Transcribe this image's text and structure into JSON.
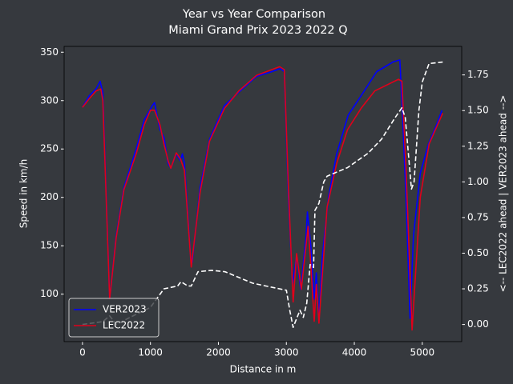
{
  "chart_data": {
    "type": "line",
    "title": "Year vs Year Comparison",
    "subtitle": "Miami Grand Prix 2023 2022 Q",
    "x_label": "Distance in m",
    "y_label": "Speed in km/h",
    "y2_label": "<-- LEC2022 ahead | VER2023 ahead -->",
    "xlim": [
      -270,
      5580
    ],
    "ylim": [
      51,
      356
    ],
    "y2lim": [
      -0.12,
      1.95
    ],
    "xticks": [
      0,
      1000,
      2000,
      3000,
      4000,
      5000
    ],
    "yticks": [
      100,
      150,
      200,
      250,
      300,
      350
    ],
    "y2ticks": [
      {
        "value": 0,
        "label": "0.00"
      },
      {
        "value": 0.25,
        "label": "0.25"
      },
      {
        "value": 0.5,
        "label": "0.50"
      },
      {
        "value": 0.75,
        "label": "0.75"
      },
      {
        "value": 1,
        "label": "1.00"
      },
      {
        "value": 1.25,
        "label": "1.25"
      },
      {
        "value": 1.5,
        "label": "1.50"
      },
      {
        "value": 1.75,
        "label": "1.75"
      }
    ],
    "legend": "lower left",
    "series": [
      {
        "name": "VER2023",
        "color": "#0000ff",
        "x": [
          0,
          100,
          200,
          260,
          300,
          400,
          495,
          610,
          790,
          910,
          1030,
          1060,
          1140,
          1200,
          1260,
          1300,
          1380,
          1440,
          1470,
          1500,
          1590,
          1615,
          1730,
          1870,
          2090,
          2320,
          2560,
          2790,
          2910,
          2970,
          3030,
          3090,
          3150,
          3210,
          3290,
          3310,
          3360,
          3410,
          3440,
          3480,
          3530,
          3620,
          3740,
          3910,
          4100,
          4330,
          4570,
          4670,
          4700,
          4760,
          4820,
          4870,
          4970,
          5090,
          5210,
          5290
        ],
        "values": [
          293,
          305,
          312,
          320,
          308,
          95,
          160,
          210,
          250,
          280,
          295,
          298,
          270,
          262,
          235,
          230,
          245,
          238,
          245,
          235,
          140,
          133,
          210,
          260,
          295,
          310,
          325,
          330,
          333,
          330,
          200,
          110,
          140,
          105,
          160,
          185,
          150,
          95,
          122,
          75,
          140,
          200,
          245,
          285,
          305,
          330,
          340,
          342,
          300,
          200,
          75,
          160,
          225,
          255,
          275,
          290
        ]
      },
      {
        "name": "LEC2022",
        "color": "#e0001a",
        "x": [
          0,
          100,
          200,
          270,
          300,
          400,
          495,
          610,
          790,
          910,
          1000,
          1060,
          1140,
          1200,
          1260,
          1300,
          1380,
          1440,
          1500,
          1600,
          1730,
          1870,
          2090,
          2300,
          2560,
          2900,
          2970,
          3030,
          3100,
          3150,
          3220,
          3320,
          3360,
          3410,
          3440,
          3480,
          3600,
          3740,
          3900,
          4100,
          4300,
          4650,
          4700,
          4760,
          4850,
          4970,
          5100,
          5300
        ],
        "values": [
          293,
          302,
          310,
          312,
          300,
          95,
          158,
          208,
          245,
          275,
          290,
          290,
          275,
          255,
          238,
          230,
          246,
          240,
          228,
          128,
          205,
          258,
          292,
          310,
          326,
          335,
          332,
          210,
          92,
          142,
          105,
          170,
          130,
          72,
          110,
          70,
          190,
          235,
          270,
          292,
          310,
          322,
          320,
          230,
          63,
          200,
          255,
          287
        ]
      },
      {
        "color": "#ffffff",
        "axis": "y2",
        "dash": true,
        "x": [
          0,
          300,
          400,
          450,
          500,
          700,
          1000,
          1200,
          1400,
          1450,
          1550,
          1600,
          1700,
          1900,
          2100,
          2300,
          2500,
          2800,
          3000,
          3050,
          3100,
          3200,
          3250,
          3300,
          3350,
          3400,
          3420,
          3480,
          3550,
          3600,
          3900,
          4200,
          4400,
          4600,
          4700,
          4750,
          4840,
          4880,
          4950,
          5000,
          5100,
          5300
        ],
        "values": [
          0.0,
          0.02,
          0.06,
          0.03,
          0.0,
          0.05,
          0.12,
          0.25,
          0.27,
          0.3,
          0.27,
          0.27,
          0.37,
          0.38,
          0.37,
          0.33,
          0.29,
          0.26,
          0.24,
          0.1,
          -0.02,
          0.1,
          0.05,
          0.15,
          0.42,
          0.4,
          0.8,
          0.85,
          1.0,
          1.04,
          1.1,
          1.2,
          1.3,
          1.45,
          1.52,
          1.45,
          0.95,
          1.0,
          1.5,
          1.7,
          1.83,
          1.84
        ]
      }
    ]
  }
}
